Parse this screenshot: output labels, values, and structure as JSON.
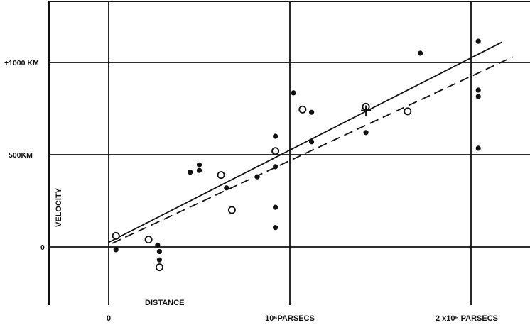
{
  "chart_data": {
    "type": "scatter",
    "title": "",
    "xlabel": "DISTANCE",
    "ylabel": "VELOCITY",
    "xlim": [
      -0.32,
      2.3
    ],
    "ylim": [
      -320,
      1320
    ],
    "grid": true,
    "x_tick_labels": [
      {
        "x": 0,
        "label": "0"
      },
      {
        "x": 1,
        "label": "10⁶PARSECS"
      },
      {
        "x": 2,
        "label": "2 x10⁶ PARSECS"
      }
    ],
    "y_tick_labels": [
      {
        "y": 0,
        "label": "0"
      },
      {
        "y": 500,
        "label": "500KM"
      },
      {
        "y": 1000,
        "label": "+1000 KM"
      }
    ],
    "grid_x": [
      0,
      1,
      2
    ],
    "grid_y": [
      0,
      500,
      1000
    ],
    "series": [
      {
        "marker": "filled-circle",
        "points": [
          [
            0.04,
            -15
          ],
          [
            0.27,
            10
          ],
          [
            0.28,
            -25
          ],
          [
            0.28,
            -70
          ],
          [
            0.45,
            405
          ],
          [
            0.5,
            415
          ],
          [
            0.5,
            445
          ],
          [
            0.65,
            320
          ],
          [
            0.82,
            380
          ],
          [
            0.92,
            600
          ],
          [
            0.92,
            435
          ],
          [
            0.92,
            215
          ],
          [
            0.92,
            105
          ],
          [
            1.02,
            835
          ],
          [
            1.12,
            730
          ],
          [
            1.12,
            570
          ],
          [
            1.42,
            620
          ],
          [
            1.72,
            1050
          ],
          [
            2.04,
            1115
          ],
          [
            2.04,
            850
          ],
          [
            2.04,
            815
          ],
          [
            2.04,
            535
          ]
        ]
      },
      {
        "marker": "open-circle",
        "points": [
          [
            0.04,
            60
          ],
          [
            0.22,
            40
          ],
          [
            0.28,
            -110
          ],
          [
            0.62,
            390
          ],
          [
            0.68,
            200
          ],
          [
            0.92,
            520
          ],
          [
            1.07,
            745
          ],
          [
            1.42,
            760
          ],
          [
            1.65,
            735
          ]
        ]
      },
      {
        "marker": "cross",
        "points": [
          [
            1.42,
            740
          ]
        ]
      }
    ],
    "lines": [
      {
        "style": "solid",
        "x": [
          0.0,
          2.17
        ],
        "y": [
          25,
          1110
        ]
      },
      {
        "style": "dashed",
        "x": [
          0.02,
          2.23
        ],
        "y": [
          20,
          1030
        ]
      }
    ]
  }
}
